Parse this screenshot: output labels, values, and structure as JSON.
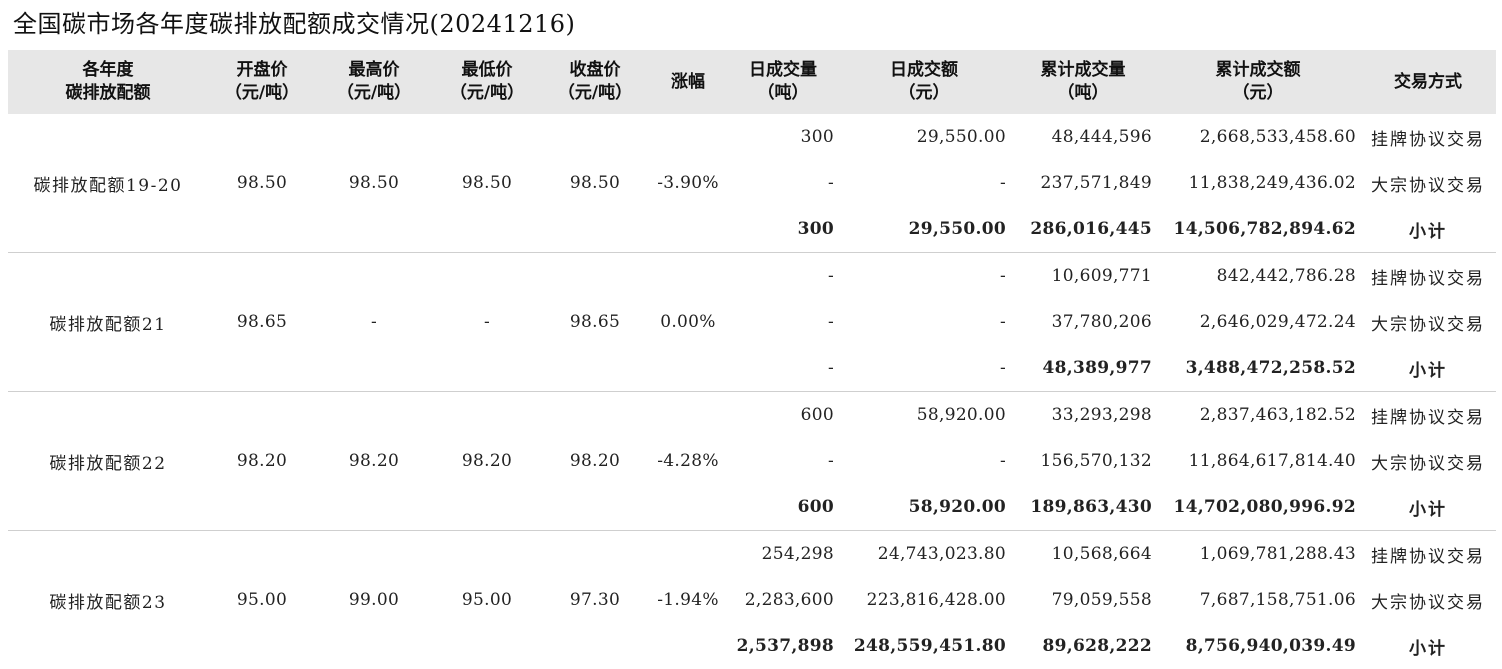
{
  "title": "全国碳市场各年度碳排放配额成交情况(20241216)",
  "headers": [
    {
      "l1": "各年度",
      "l2": "碳排放配额"
    },
    {
      "l1": "开盘价",
      "l2": "（元/吨）"
    },
    {
      "l1": "最高价",
      "l2": "（元/吨）"
    },
    {
      "l1": "最低价",
      "l2": "（元/吨）"
    },
    {
      "l1": "收盘价",
      "l2": "（元/吨）"
    },
    {
      "l1": "涨幅",
      "l2": ""
    },
    {
      "l1": "日成交量",
      "l2": "（吨）"
    },
    {
      "l1": "日成交额",
      "l2": "（元）"
    },
    {
      "l1": "累计成交量",
      "l2": "（吨）"
    },
    {
      "l1": "累计成交额",
      "l2": "（元）"
    },
    {
      "l1": "交易方式",
      "l2": ""
    }
  ],
  "groups": [
    {
      "name": "碳排放配额19-20",
      "open": "98.50",
      "high": "98.50",
      "low": "98.50",
      "close": "98.50",
      "change": "-3.90%",
      "rows": [
        {
          "vol": "300",
          "amt": "29,550.00",
          "cum_vol": "48,444,596",
          "cum_amt": "2,668,533,458.60",
          "mode": "挂牌协议交易"
        },
        {
          "vol": "-",
          "amt": "-",
          "cum_vol": "237,571,849",
          "cum_amt": "11,838,249,436.02",
          "mode": "大宗协议交易"
        },
        {
          "vol": "300",
          "amt": "29,550.00",
          "cum_vol": "286,016,445",
          "cum_amt": "14,506,782,894.62",
          "mode": "小计"
        }
      ]
    },
    {
      "name": "碳排放配额21",
      "open": "98.65",
      "high": "-",
      "low": "-",
      "close": "98.65",
      "change": "0.00%",
      "rows": [
        {
          "vol": "-",
          "amt": "-",
          "cum_vol": "10,609,771",
          "cum_amt": "842,442,786.28",
          "mode": "挂牌协议交易"
        },
        {
          "vol": "-",
          "amt": "-",
          "cum_vol": "37,780,206",
          "cum_amt": "2,646,029,472.24",
          "mode": "大宗协议交易"
        },
        {
          "vol": "-",
          "amt": "-",
          "cum_vol": "48,389,977",
          "cum_amt": "3,488,472,258.52",
          "mode": "小计"
        }
      ]
    },
    {
      "name": "碳排放配额22",
      "open": "98.20",
      "high": "98.20",
      "low": "98.20",
      "close": "98.20",
      "change": "-4.28%",
      "rows": [
        {
          "vol": "600",
          "amt": "58,920.00",
          "cum_vol": "33,293,298",
          "cum_amt": "2,837,463,182.52",
          "mode": "挂牌协议交易"
        },
        {
          "vol": "-",
          "amt": "-",
          "cum_vol": "156,570,132",
          "cum_amt": "11,864,617,814.40",
          "mode": "大宗协议交易"
        },
        {
          "vol": "600",
          "amt": "58,920.00",
          "cum_vol": "189,863,430",
          "cum_amt": "14,702,080,996.92",
          "mode": "小计"
        }
      ]
    },
    {
      "name": "碳排放配额23",
      "open": "95.00",
      "high": "99.00",
      "low": "95.00",
      "close": "97.30",
      "change": "-1.94%",
      "rows": [
        {
          "vol": "254,298",
          "amt": "24,743,023.80",
          "cum_vol": "10,568,664",
          "cum_amt": "1,069,781,288.43",
          "mode": "挂牌协议交易"
        },
        {
          "vol": "2,283,600",
          "amt": "223,816,428.00",
          "cum_vol": "79,059,558",
          "cum_amt": "7,687,158,751.06",
          "mode": "大宗协议交易"
        },
        {
          "vol": "2,537,898",
          "amt": "248,559,451.80",
          "cum_vol": "89,628,222",
          "cum_amt": "8,756,940,039.49",
          "mode": "小计"
        }
      ]
    }
  ]
}
